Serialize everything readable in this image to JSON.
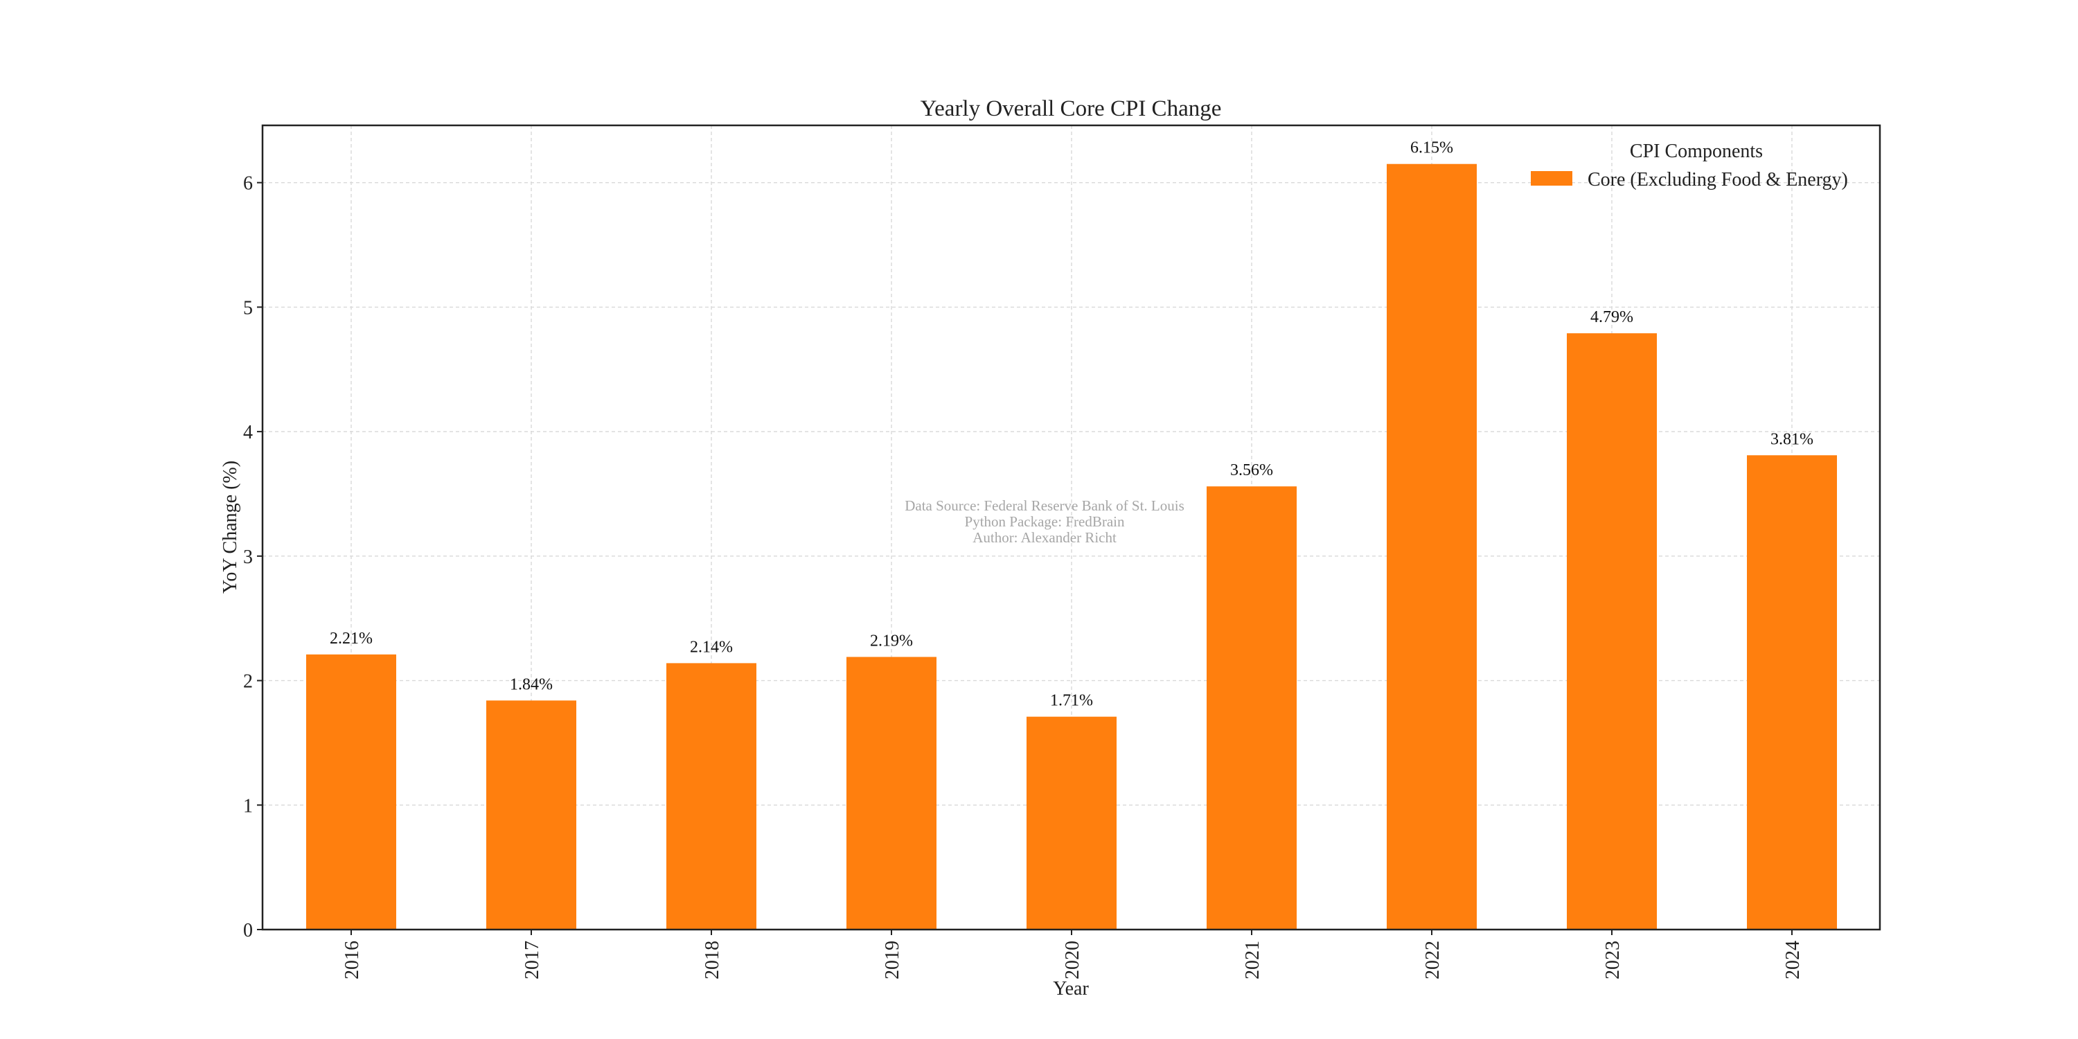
{
  "chart_data": {
    "type": "bar",
    "title": "Yearly Overall Core CPI Change",
    "xlabel": "Year",
    "ylabel": "YoY Change (%)",
    "categories": [
      "2016",
      "2017",
      "2018",
      "2019",
      "2020",
      "2021",
      "2022",
      "2023",
      "2024"
    ],
    "series": [
      {
        "name": "Core (Excluding Food & Energy)",
        "values": [
          2.21,
          1.84,
          2.14,
          2.19,
          1.71,
          3.56,
          6.15,
          4.79,
          3.81
        ],
        "data_labels": [
          "2.21%",
          "1.84%",
          "2.14%",
          "2.19%",
          "1.71%",
          "3.56%",
          "6.15%",
          "4.79%",
          "3.81%"
        ],
        "color": "#ff7f0e"
      }
    ],
    "ylim": [
      0,
      6.46
    ],
    "yticks": [
      "0",
      "1",
      "2",
      "3",
      "4",
      "5",
      "6"
    ],
    "grid": true,
    "legend": {
      "title": "CPI Components",
      "placement": "top-right"
    },
    "annotation": [
      "Data Source: Federal Reserve Bank of St. Louis",
      "Python Package: FredBrain",
      "Author: Alexander Richt"
    ]
  },
  "colors": {
    "bar": "#ff7f0e",
    "grid": "#d9d9d9",
    "frame": "#222222",
    "watermark": "#a6a6a6"
  }
}
